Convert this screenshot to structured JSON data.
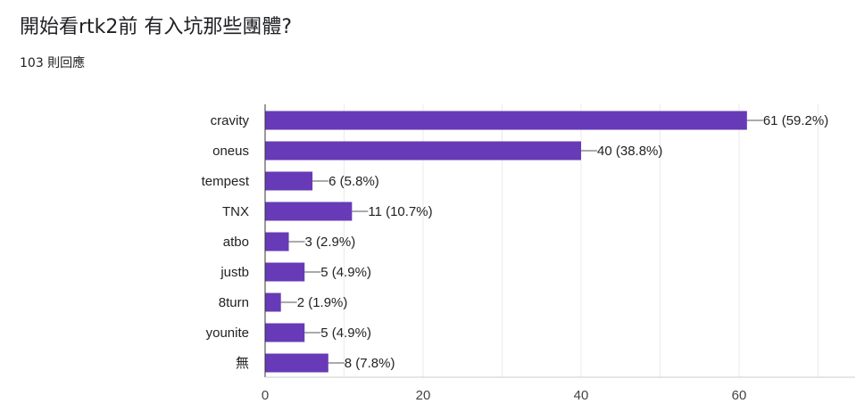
{
  "question": {
    "title": "開始看rtk2前 有入坑那些團體?",
    "responses": "103 則回應"
  },
  "colors": {
    "bar": "#673ab7",
    "grid": "#ebebeb",
    "axis": "#333333"
  },
  "chart_data": {
    "type": "bar",
    "orientation": "horizontal",
    "categories": [
      "cravity",
      "oneus",
      "tempest",
      "TNX",
      "atbo",
      "justb",
      "8turn",
      "younite",
      "無"
    ],
    "values": [
      61,
      40,
      6,
      11,
      3,
      5,
      2,
      5,
      8
    ],
    "value_labels": [
      "61 (59.2%)",
      "40 (38.8%)",
      "6 (5.8%)",
      "11 (10.7%)",
      "3 (2.9%)",
      "5 (4.9%)",
      "2 (1.9%)",
      "5 (4.9%)",
      "8 (7.8%)"
    ],
    "xlim": [
      0,
      74
    ],
    "xticks": [
      0,
      20,
      40,
      60
    ],
    "xtick_labels": [
      "0",
      "20",
      "40",
      "60"
    ],
    "grid": true,
    "legend": false
  }
}
